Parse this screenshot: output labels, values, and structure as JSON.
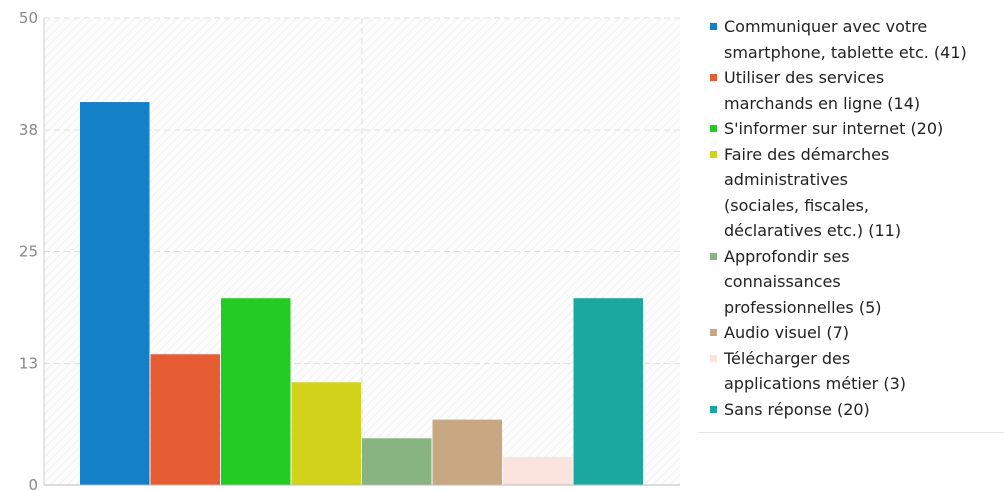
{
  "chart_data": {
    "type": "bar",
    "categories": [
      "Communiquer avec votre smartphone, tablette etc. (41)",
      "Utiliser des services marchands en ligne (14)",
      "S'informer sur internet (20)",
      "Faire des démarches administratives (sociales, fiscales, déclaratives etc.) (11)",
      "Approfondir ses connaissances professionnelles (5)",
      "Audio visuel (7)",
      "Télécharger des applications métier (3)",
      "Sans réponse (20)"
    ],
    "values": [
      41,
      14,
      20,
      11,
      5,
      7,
      3,
      20
    ],
    "colors": [
      "#1380c8",
      "#e65c33",
      "#22cc22",
      "#d2d21a",
      "#88b482",
      "#c8a882",
      "#fbe4de",
      "#1aa8a0"
    ],
    "ylim": [
      0,
      50
    ],
    "yticks": [
      "0",
      "13",
      "25",
      "38",
      "50"
    ],
    "grid": true,
    "legend_position": "right",
    "legend": [
      {
        "color": "#1380c8",
        "lines": [
          "Communiquer avec votre",
          "smartphone, tablette etc. (41)"
        ]
      },
      {
        "color": "#e65c33",
        "lines": [
          "Utiliser des services",
          "marchands en ligne (14)"
        ]
      },
      {
        "color": "#22cc22",
        "lines": [
          "S'informer sur internet (20)"
        ]
      },
      {
        "color": "#d2d21a",
        "lines": [
          "Faire des démarches",
          "administratives",
          "(sociales, fiscales,",
          "déclaratives etc.) (11)"
        ]
      },
      {
        "color": "#88b482",
        "lines": [
          "Approfondir ses",
          "connaissances",
          "professionnelles (5)"
        ]
      },
      {
        "color": "#c8a882",
        "lines": [
          "Audio visuel (7)"
        ]
      },
      {
        "color": "#fbe4de",
        "lines": [
          "Télécharger des",
          "applications métier (3)"
        ]
      },
      {
        "color": "#1aa8a0",
        "lines": [
          "Sans réponse (20)"
        ]
      }
    ]
  }
}
